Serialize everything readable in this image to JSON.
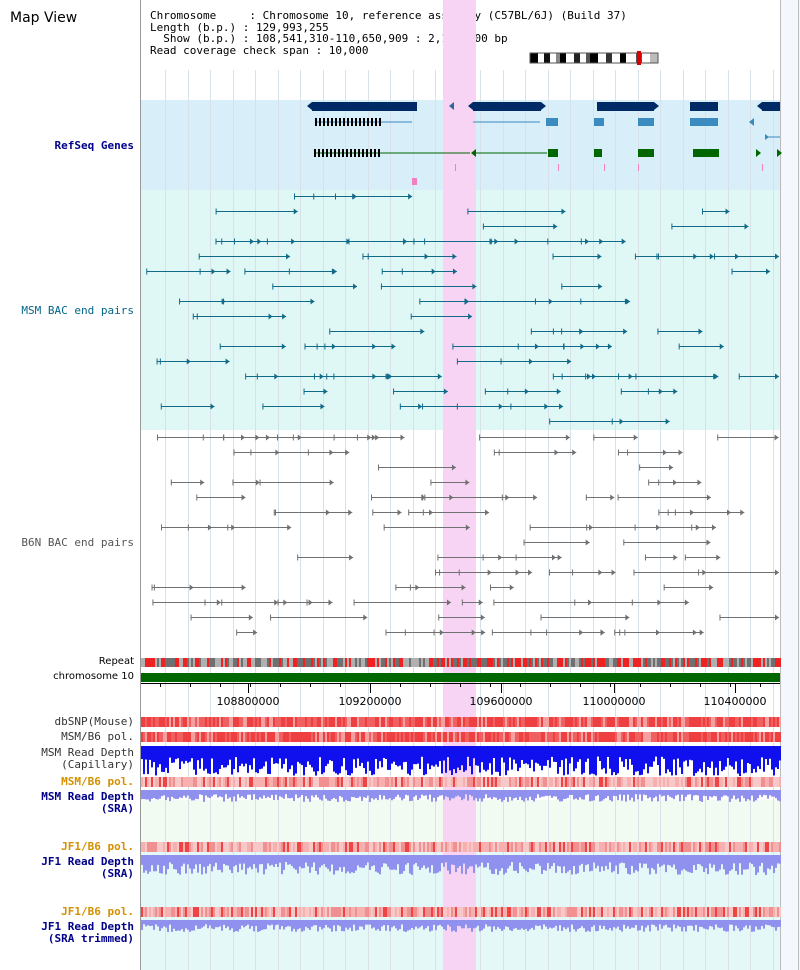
{
  "page": {
    "title": "Map View"
  },
  "info": {
    "lines": [
      "Chromosome     : Chromosome 10, reference assembly (C57BL/6J) (Build 37)",
      "Length (b.p.) : 129,993,255",
      "  Show (b.p.) : 108,541,310-110,650,909 : 2,109,600 bp",
      "Read coverage check span : 10,000"
    ]
  },
  "tracks": {
    "refseq": "RefSeq Genes",
    "msm_bac": "MSM BAC end pairs",
    "b6n_bac": "B6N BAC end pairs",
    "repeat": "Repeat",
    "chromosome": "chromosome 10",
    "dbsnp": "dbSNP(Mouse)",
    "msm_b6_pol_1": "MSM/B6 pol.",
    "msm_depth_cap_1": "MSM Read Depth",
    "msm_depth_cap_2": "(Capillary)",
    "msm_b6_pol_2": "MSM/B6 pol.",
    "msm_depth_sra_1": "MSM Read Depth",
    "msm_depth_sra_2": "(SRA)",
    "jf1_pol_1": "JF1/B6 pol.",
    "jf1_depth_sra_1": "JF1 Read Depth",
    "jf1_depth_sra_2": "(SRA)",
    "jf1_pol_2": "JF1/B6 pol.",
    "jf1_depth_trim_1": "JF1 Read Depth",
    "jf1_depth_trim_2": "(SRA trimmed)"
  },
  "axis": {
    "tick_labels": [
      "108800000",
      "109200000",
      "109600000",
      "110000000",
      "110400000"
    ]
  },
  "colors": {
    "refseq_bg": "#d8eef9",
    "msm_bg": "#dff7f5",
    "highlight": "#f8d4f4",
    "gene_dark": "#002a66",
    "gene_mid": "#3a8bbf",
    "gene_green": "#006600",
    "msm_feature": "#116a88",
    "b6n_feature": "#707070",
    "chromosome_bar": "#006600",
    "depth_capillary": "#1010ee",
    "depth_sra": "#9090ee",
    "snp_red": "#ee3333",
    "snp_pink": "#f4b0b0"
  }
}
